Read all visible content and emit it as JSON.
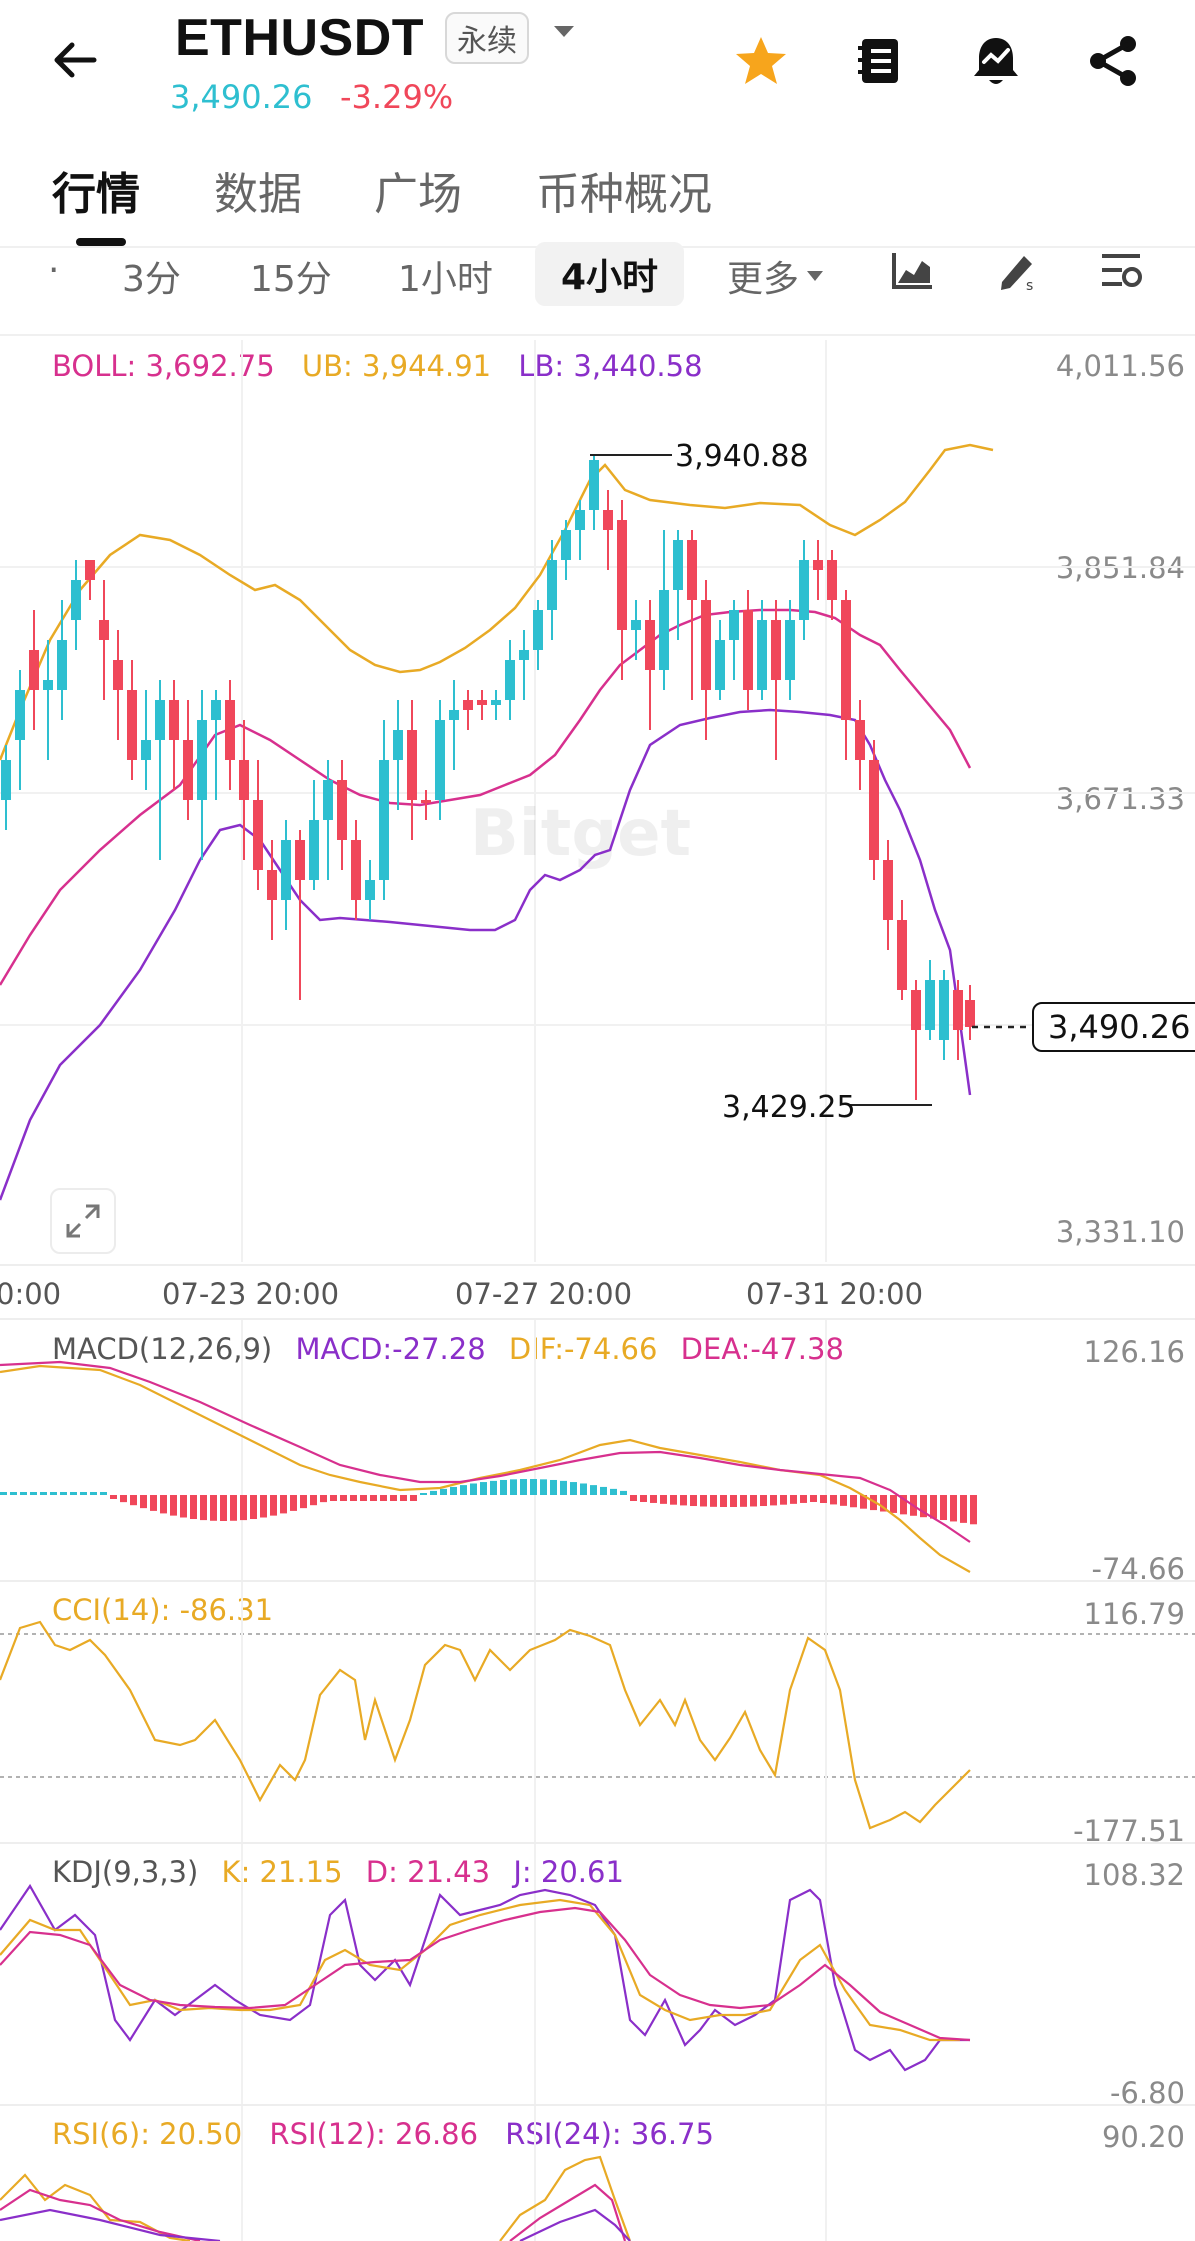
{
  "header": {
    "symbol": "ETHUSDT",
    "contract_type": "永续",
    "last_price": "3,490.26",
    "change_pct": "-3.29%",
    "icons": [
      "back-arrow-icon",
      "dropdown-caret-icon",
      "star-icon",
      "notes-icon",
      "alert-bell-icon",
      "share-icon"
    ],
    "colors": {
      "up": "#2ebfd0",
      "down": "#f0475a",
      "star": "#f7a51c"
    }
  },
  "tabs": [
    {
      "label": "行情",
      "active": true
    },
    {
      "label": "数据",
      "active": false
    },
    {
      "label": "广场",
      "active": false
    },
    {
      "label": "币种概况",
      "active": false
    }
  ],
  "timeframes": {
    "partial": "·",
    "items": [
      "3分",
      "15分",
      "1小时",
      "4小时"
    ],
    "active": "4小时",
    "more_label": "更多",
    "tool_icons": [
      "chart-type-icon",
      "draw-tool-icon",
      "indicator-settings-icon"
    ]
  },
  "main_chart": {
    "legend": {
      "boll": "BOLL: 3,692.75",
      "ub": "UB: 3,944.91",
      "lb": "LB: 3,440.58"
    },
    "y_ticks": [
      "4,011.56",
      "3,851.84",
      "3,671.33",
      "3,331.10"
    ],
    "high_label": "3,940.88",
    "low_label": "3,429.25",
    "current_price": "3,490.26",
    "watermark": "Bitget",
    "x_ticks": [
      "0:00",
      "07-23 20:00",
      "07-27 20:00",
      "07-31 20:00"
    ]
  },
  "macd": {
    "legend": {
      "name": "MACD(12,26,9)",
      "macd": "MACD:-27.28",
      "dif": "DIF:-74.66",
      "dea": "DEA:-47.38"
    },
    "y_top": "126.16",
    "y_bottom": "-74.66"
  },
  "cci": {
    "legend": "CCI(14): -86.31",
    "y_top": "116.79",
    "y_bottom": "-177.51"
  },
  "kdj": {
    "legend": {
      "name": "KDJ(9,3,3)",
      "k": "K: 21.15",
      "d": "D: 21.43",
      "j": "J: 20.61"
    },
    "y_top": "108.32",
    "y_bottom": "-6.80"
  },
  "rsi": {
    "legend": {
      "rsi6": "RSI(6): 20.50",
      "rsi12": "RSI(12): 26.86",
      "rsi24": "RSI(24): 36.75"
    },
    "y_top": "90.20"
  },
  "chart_data": {
    "type": "line",
    "x": [
      "07-23 20:00",
      "07-27 20:00",
      "07-31 20:00"
    ],
    "series": [],
    "ylim": [
      3331.1,
      4011.56
    ],
    "ticks": [
      3331.1,
      3671.33,
      3851.84,
      4011.56
    ],
    "high": 3940.88,
    "low": 3429.25,
    "last": 3490.26
  }
}
